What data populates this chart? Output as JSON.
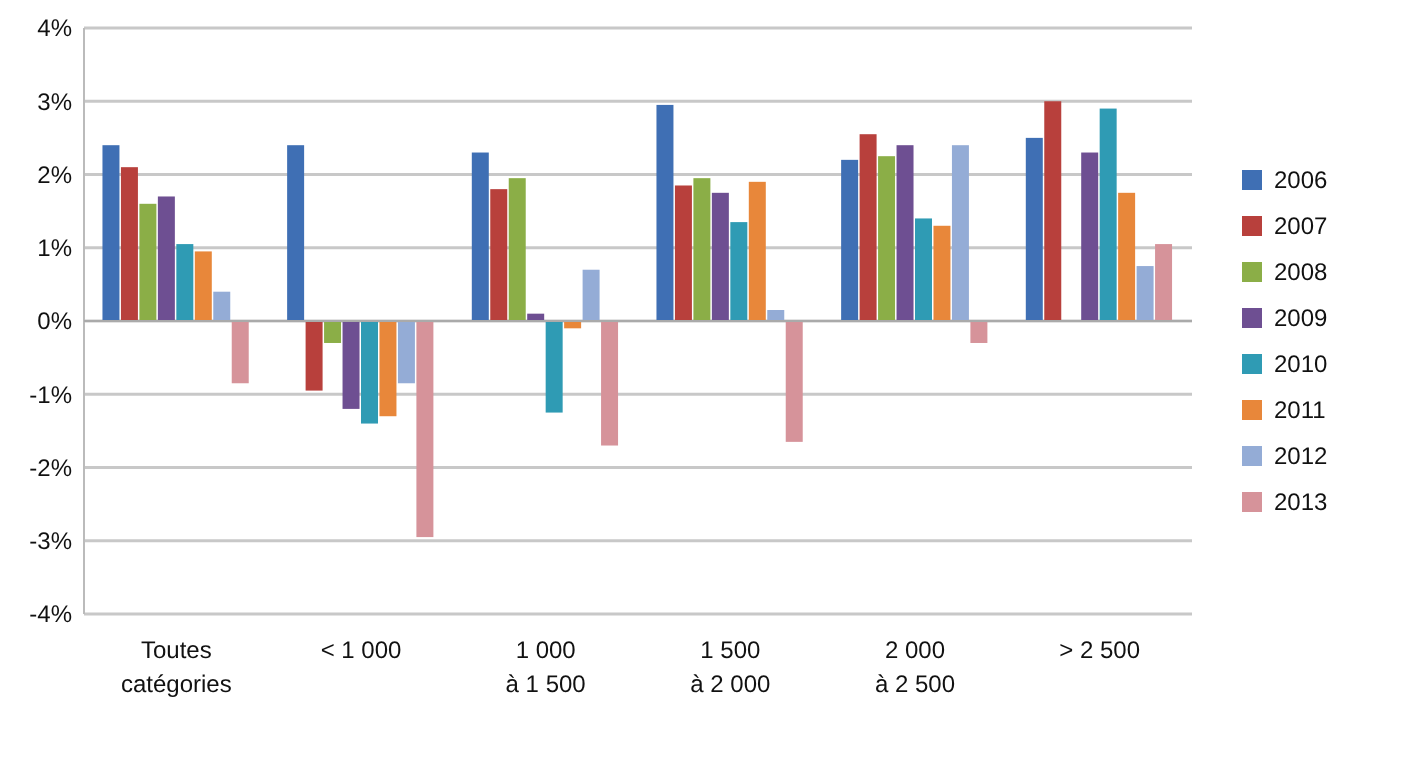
{
  "chart_data": {
    "type": "bar",
    "categories": [
      "Toutes\ncatégories",
      "< 1 000",
      "1 000\nà 1 500",
      "1 500\nà 2 000",
      "2 000\nà 2 500",
      "> 2 500"
    ],
    "series": [
      {
        "name": "2006",
        "color": "#3f6fb4",
        "values": [
          2.4,
          2.4,
          2.3,
          2.95,
          2.2,
          2.5
        ]
      },
      {
        "name": "2007",
        "color": "#b8403c",
        "values": [
          2.1,
          -0.95,
          1.8,
          1.85,
          2.55,
          3.0
        ]
      },
      {
        "name": "2008",
        "color": "#8bae47",
        "values": [
          1.6,
          -0.3,
          1.95,
          1.95,
          2.25,
          null
        ]
      },
      {
        "name": "2009",
        "color": "#6e4f92",
        "values": [
          1.7,
          -1.2,
          0.1,
          1.75,
          2.4,
          2.3
        ]
      },
      {
        "name": "2010",
        "color": "#2f9bb4",
        "values": [
          1.05,
          -1.4,
          -1.25,
          1.35,
          1.4,
          2.9
        ]
      },
      {
        "name": "2011",
        "color": "#e8873a",
        "values": [
          0.95,
          -1.3,
          -0.1,
          1.9,
          1.3,
          1.75
        ]
      },
      {
        "name": "2012",
        "color": "#94acd6",
        "values": [
          0.4,
          -0.85,
          0.7,
          0.15,
          2.4,
          0.75
        ]
      },
      {
        "name": "2013",
        "color": "#d6939a",
        "values": [
          -0.85,
          -2.95,
          -1.7,
          -1.65,
          -0.3,
          1.05
        ]
      }
    ],
    "ylim": [
      -4,
      4
    ],
    "yticks": [
      {
        "value": -4,
        "label": "-4%"
      },
      {
        "value": -3,
        "label": "-3%"
      },
      {
        "value": -2,
        "label": "-2%"
      },
      {
        "value": -1,
        "label": "-1%"
      },
      {
        "value": 0,
        "label": "0%"
      },
      {
        "value": 1,
        "label": "1%"
      },
      {
        "value": 2,
        "label": "2%"
      },
      {
        "value": 3,
        "label": "3%"
      },
      {
        "value": 4,
        "label": "4%"
      }
    ],
    "grid": "y",
    "legend": "right"
  }
}
